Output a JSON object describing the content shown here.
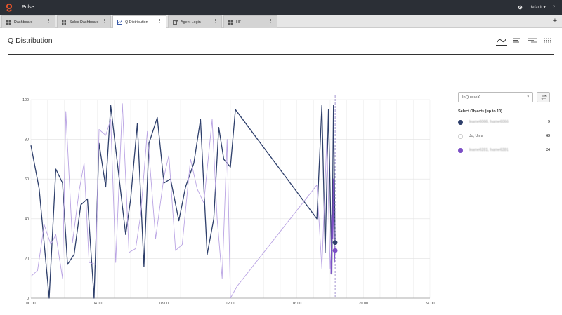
{
  "app": {
    "title": "Pulse",
    "user": "default",
    "help": "?"
  },
  "colors": {
    "accent": "#e8542a",
    "topbar": "#2b2f36",
    "series_dark": "#2e3f6b",
    "series_light": "#b9a3e3",
    "series_purple": "#7c4fc6"
  },
  "tabs": [
    {
      "label": "Dashboard",
      "icon": "grid-icon",
      "active": false
    },
    {
      "label": "Sales Dashboard",
      "icon": "grid-icon",
      "active": false
    },
    {
      "label": "Q Distribution",
      "icon": "chart-icon",
      "active": true
    },
    {
      "label": "Agent Login",
      "icon": "external-icon",
      "active": false
    },
    {
      "label": "HF",
      "icon": "grid-icon",
      "active": false
    }
  ],
  "page": {
    "title": "Q Distribution"
  },
  "side": {
    "metric_select": "InQueueX",
    "select_label": "Select Objects (up to 10)",
    "objects": [
      {
        "name": "lname6066, fname6066",
        "count": "9",
        "color": "#2e3f6b",
        "filled": true
      },
      {
        "name": "Jo, Uma",
        "count": "63",
        "color": "#ffffff",
        "filled": false
      },
      {
        "name": "lname6281, fname6281",
        "count": "24",
        "color": "#7c4fc6",
        "filled": true
      }
    ]
  },
  "chart_data": {
    "type": "line",
    "xlim": [
      0,
      24
    ],
    "ylim": [
      0,
      100
    ],
    "x_ticks": [
      "00.00",
      "04.00",
      "08.00",
      "12.00",
      "16.00",
      "20.00",
      "24.00"
    ],
    "y_ticks": [
      "0",
      "20",
      "40",
      "60",
      "80",
      "100"
    ],
    "marker_x": 18.3,
    "series": [
      {
        "color": "#2e3f6b",
        "width": 1.3,
        "points": [
          [
            0,
            77
          ],
          [
            0.5,
            55
          ],
          [
            1.1,
            0
          ],
          [
            1.5,
            65
          ],
          [
            1.9,
            58
          ],
          [
            2.2,
            17
          ],
          [
            2.6,
            22
          ],
          [
            3.0,
            47
          ],
          [
            3.4,
            50
          ],
          [
            3.8,
            0
          ],
          [
            4.1,
            78
          ],
          [
            4.5,
            56
          ],
          [
            4.8,
            97
          ],
          [
            5.2,
            68
          ],
          [
            5.7,
            32
          ],
          [
            6.0,
            50
          ],
          [
            6.4,
            88
          ],
          [
            6.8,
            16
          ],
          [
            7.1,
            78
          ],
          [
            7.6,
            91
          ],
          [
            8.0,
            58
          ],
          [
            8.4,
            60
          ],
          [
            8.9,
            39
          ],
          [
            9.3,
            56
          ],
          [
            9.8,
            68
          ],
          [
            10.2,
            90
          ],
          [
            10.6,
            22
          ],
          [
            11.0,
            40
          ],
          [
            11.3,
            86
          ],
          [
            11.6,
            70
          ],
          [
            12.0,
            66
          ],
          [
            12.3,
            95
          ],
          [
            17.2,
            40
          ],
          [
            17.5,
            97
          ],
          [
            17.7,
            23
          ],
          [
            17.9,
            95
          ],
          [
            18.1,
            12
          ],
          [
            18.2,
            97
          ],
          [
            18.3,
            28
          ]
        ],
        "end_dot": [
          18.3,
          28
        ]
      },
      {
        "color": "#b9a3e3",
        "width": 0.9,
        "points": [
          [
            0,
            11
          ],
          [
            0.4,
            14
          ],
          [
            0.8,
            37
          ],
          [
            1.2,
            27
          ],
          [
            1.5,
            32
          ],
          [
            1.9,
            10
          ],
          [
            2.1,
            94
          ],
          [
            2.5,
            28
          ],
          [
            2.9,
            54
          ],
          [
            3.2,
            68
          ],
          [
            3.5,
            18
          ],
          [
            3.9,
            17
          ],
          [
            4.1,
            85
          ],
          [
            4.5,
            82
          ],
          [
            4.8,
            90
          ],
          [
            5.1,
            18
          ],
          [
            5.5,
            98
          ],
          [
            5.9,
            23
          ],
          [
            6.3,
            25
          ],
          [
            6.6,
            42
          ],
          [
            7.0,
            84
          ],
          [
            7.5,
            30
          ],
          [
            8.0,
            61
          ],
          [
            8.3,
            72
          ],
          [
            8.7,
            24
          ],
          [
            9.1,
            27
          ],
          [
            9.6,
            70
          ],
          [
            10.0,
            55
          ],
          [
            10.4,
            48
          ],
          [
            10.9,
            90
          ],
          [
            11.2,
            40
          ],
          [
            11.5,
            10
          ],
          [
            11.8,
            80
          ],
          [
            12.0,
            0
          ],
          [
            12.4,
            6
          ],
          [
            17.2,
            57
          ],
          [
            17.5,
            15
          ],
          [
            17.8,
            81
          ],
          [
            18.0,
            15
          ],
          [
            18.2,
            40
          ],
          [
            18.3,
            22
          ]
        ]
      },
      {
        "color": "#7c4fc6",
        "width": 1.3,
        "points": [
          [
            18.05,
            12
          ],
          [
            18.1,
            42
          ],
          [
            18.15,
            30
          ],
          [
            18.2,
            60
          ],
          [
            18.25,
            18
          ],
          [
            18.3,
            24
          ]
        ],
        "end_dot": [
          18.3,
          24
        ]
      }
    ]
  }
}
